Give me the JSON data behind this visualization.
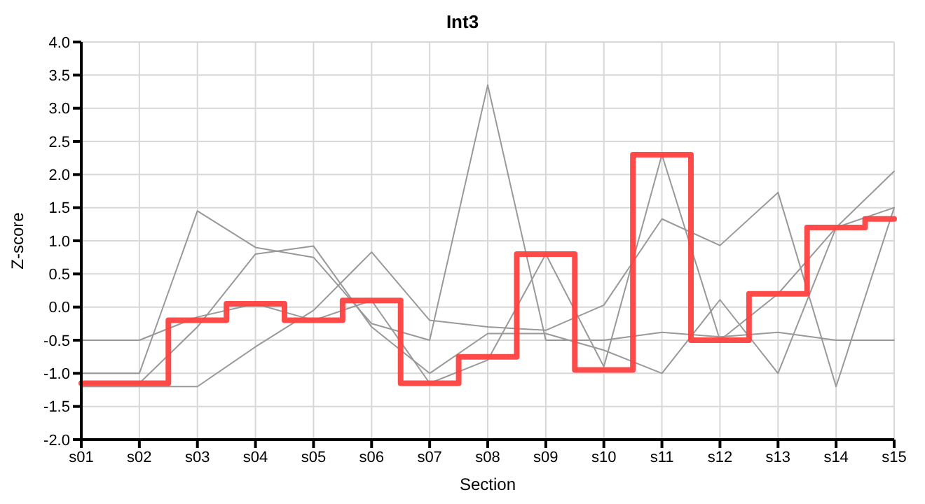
{
  "chart_data": {
    "type": "line",
    "title": "Int3",
    "xlabel": "Section",
    "ylabel": "Z-score",
    "categories": [
      "s01",
      "s02",
      "s03",
      "s04",
      "s05",
      "s06",
      "s07",
      "s08",
      "s09",
      "s10",
      "s11",
      "s12",
      "s13",
      "s14",
      "s15"
    ],
    "series": [
      {
        "color": "#999999",
        "values": [
          -1.0,
          -1.0,
          1.45,
          0.9,
          0.75,
          -0.25,
          -0.5,
          3.35,
          -0.5,
          -0.5,
          -0.38,
          -0.45,
          -0.38,
          -0.5,
          -0.5
        ]
      },
      {
        "color": "#999999",
        "values": [
          -1.2,
          -1.2,
          -1.2,
          -0.6,
          -0.05,
          0.83,
          -0.2,
          -0.3,
          -0.35,
          0.03,
          1.33,
          0.93,
          1.73,
          -1.2,
          1.5
        ]
      },
      {
        "color": "#999999",
        "values": [
          -0.5,
          -0.5,
          -0.15,
          0.05,
          -0.2,
          0.1,
          -1.15,
          -0.8,
          0.8,
          -0.9,
          2.3,
          -0.5,
          0.2,
          1.2,
          2.05
        ]
      },
      {
        "color": "#999999",
        "values": [
          -1.15,
          -1.15,
          -0.3,
          0.8,
          0.92,
          -0.3,
          -1.0,
          -0.4,
          -0.4,
          -0.65,
          -1.0,
          0.11,
          -1.0,
          1.2,
          1.5
        ]
      },
      {
        "type": "step",
        "color": "#ff4040",
        "values": [
          -1.15,
          -1.15,
          -0.2,
          0.05,
          -0.2,
          0.1,
          -1.15,
          -0.75,
          0.8,
          -0.95,
          2.3,
          -0.5,
          0.2,
          1.2,
          1.33
        ]
      }
    ],
    "ylim": [
      -2.0,
      4.0
    ],
    "yticks": [
      {
        "value": -2,
        "label": "-2.0"
      },
      {
        "value": -1.5,
        "label": "-1.5"
      },
      {
        "value": -1,
        "label": "-1.0"
      },
      {
        "value": -0.5,
        "label": "-0.5"
      },
      {
        "value": 0,
        "label": "0.0"
      },
      {
        "value": 0.5,
        "label": "0.5"
      },
      {
        "value": 1,
        "label": "1.0"
      },
      {
        "value": 1.5,
        "label": "1.5"
      },
      {
        "value": 2,
        "label": "2.0"
      },
      {
        "value": 2.5,
        "label": "2.5"
      },
      {
        "value": 3,
        "label": "3.0"
      },
      {
        "value": 3.5,
        "label": "3.5"
      },
      {
        "value": 4,
        "label": "4.0"
      }
    ],
    "grid": true,
    "marker": "none",
    "legend": false
  }
}
